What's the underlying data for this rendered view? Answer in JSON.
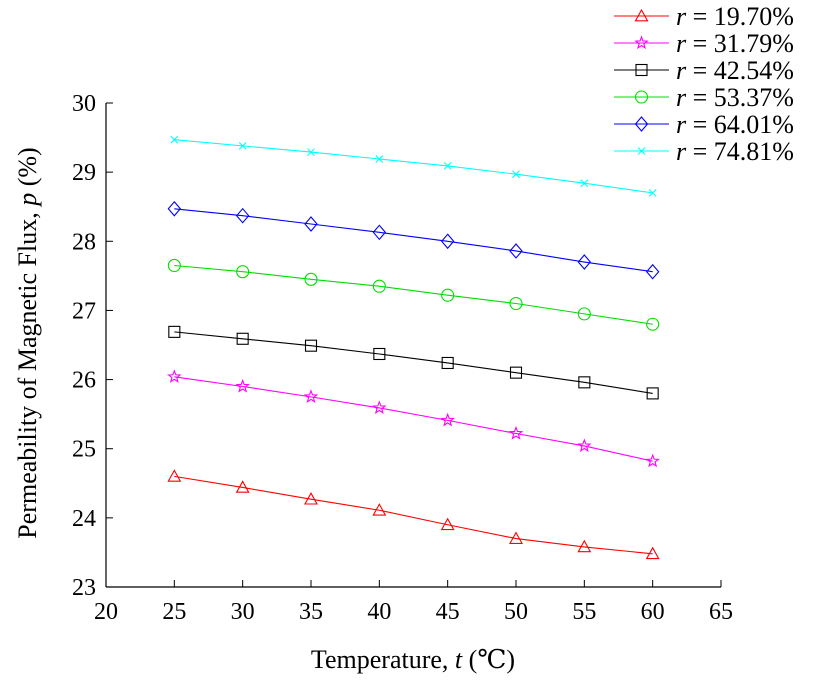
{
  "chart_data": {
    "type": "line",
    "xlabel_prefix": "Temperature, ",
    "xlabel_var": "t",
    "xlabel_unit": " (℃)",
    "ylabel_prefix": "Permeability of Magnetic Flux, ",
    "ylabel_var": "p",
    "ylabel_unit": " (%)",
    "xlim": [
      20,
      65
    ],
    "ylim": [
      23,
      30
    ],
    "xticks": [
      20,
      25,
      30,
      35,
      40,
      45,
      50,
      55,
      60,
      65
    ],
    "yticks": [
      23,
      24,
      25,
      26,
      27,
      28,
      29,
      30
    ],
    "grid": false,
    "legend_position": "top-right",
    "x": [
      25,
      30,
      35,
      40,
      45,
      50,
      55,
      60
    ],
    "series": [
      {
        "name": "r = 19.70%",
        "var": "r",
        "label_value": " = 19.70%",
        "color": "#ff0000",
        "marker": "triangle",
        "values": [
          24.6,
          24.44,
          24.27,
          24.11,
          23.9,
          23.7,
          23.58,
          23.48
        ]
      },
      {
        "name": "r = 31.79%",
        "var": "r",
        "label_value": " = 31.79%",
        "color": "#ff00ff",
        "marker": "star",
        "values": [
          26.04,
          25.9,
          25.75,
          25.59,
          25.41,
          25.22,
          25.04,
          24.82
        ]
      },
      {
        "name": "r = 42.54%",
        "var": "r",
        "label_value": " = 42.54%",
        "color": "#000000",
        "marker": "square",
        "values": [
          26.69,
          26.59,
          26.49,
          26.37,
          26.24,
          26.1,
          25.96,
          25.8
        ]
      },
      {
        "name": "r = 53.37%",
        "var": "r",
        "label_value": " = 53.37%",
        "color": "#00dd00",
        "marker": "circle",
        "values": [
          27.65,
          27.56,
          27.45,
          27.35,
          27.22,
          27.1,
          26.95,
          26.8
        ]
      },
      {
        "name": "r = 64.01%",
        "var": "r",
        "label_value": " = 64.01%",
        "color": "#0000ff",
        "marker": "diamond",
        "values": [
          28.47,
          28.37,
          28.25,
          28.13,
          28.0,
          27.86,
          27.7,
          27.56
        ]
      },
      {
        "name": "r = 74.81%",
        "var": "r",
        "label_value": " = 74.81%",
        "color": "#00ffff",
        "marker": "x",
        "values": [
          29.47,
          29.38,
          29.29,
          29.19,
          29.09,
          28.97,
          28.84,
          28.7
        ]
      }
    ]
  }
}
